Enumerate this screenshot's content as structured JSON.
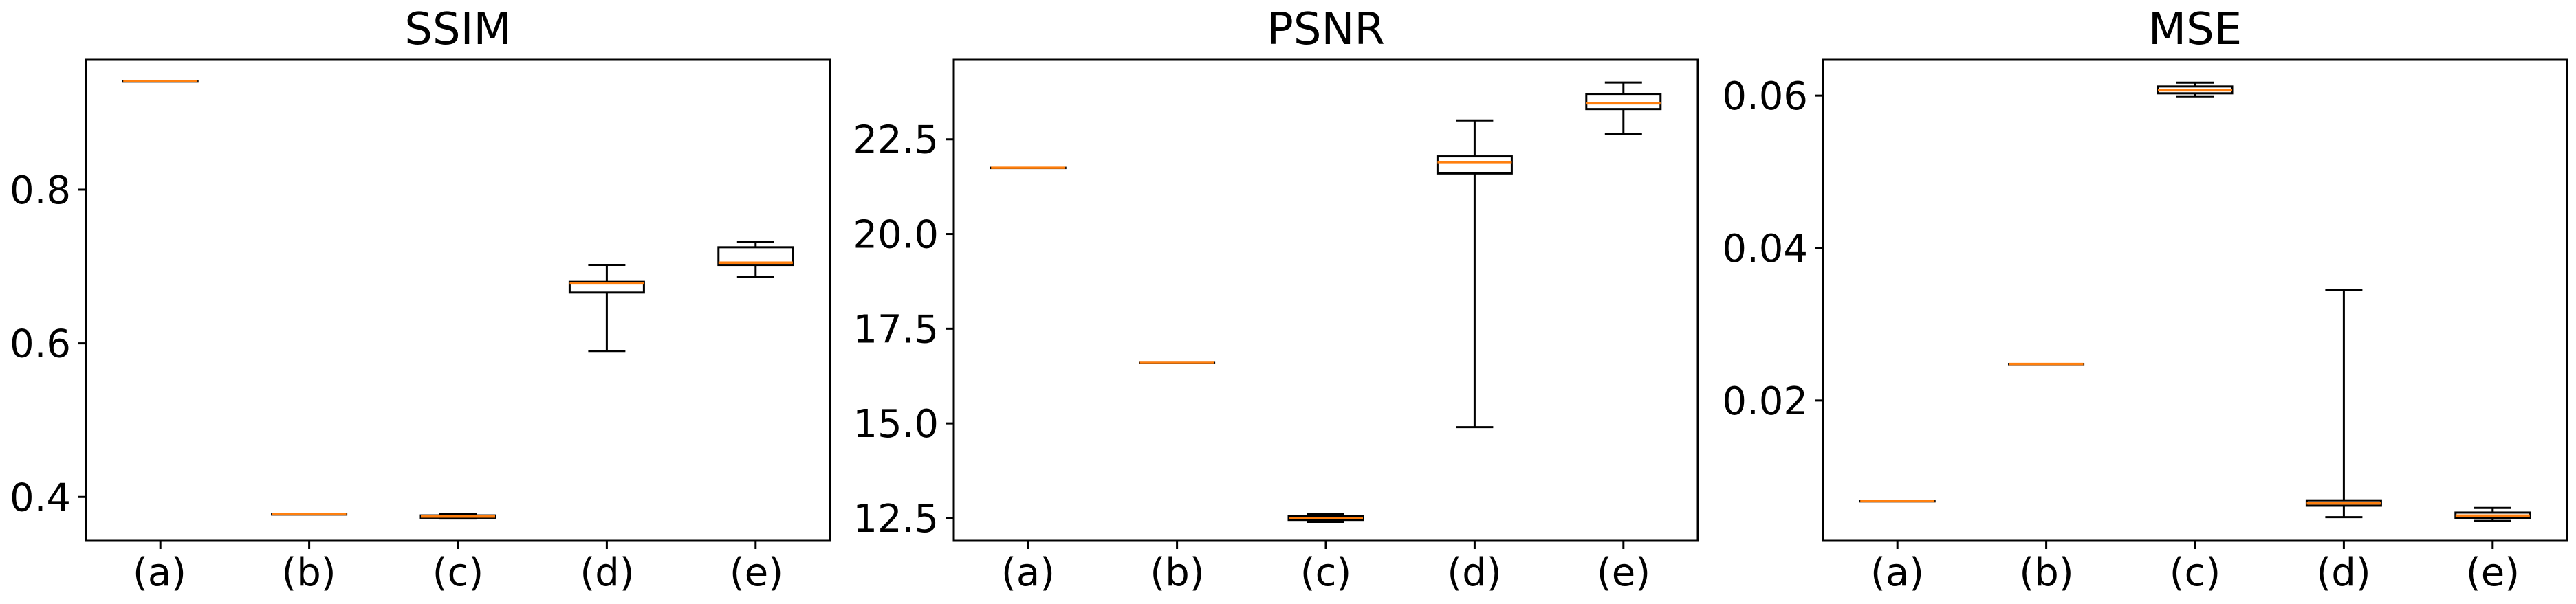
{
  "colors": {
    "box": "#000000",
    "median": "#ff7f0e",
    "background": "#ffffff"
  },
  "chart_data": [
    {
      "type": "box",
      "title": "SSIM",
      "categories": [
        "(a)",
        "(b)",
        "(c)",
        "(d)",
        "(e)"
      ],
      "ylim": [
        0.343,
        0.969
      ],
      "yticks": [
        0.4,
        0.6,
        0.8
      ],
      "ytick_labels": [
        "0.4",
        "0.6",
        "0.8"
      ],
      "boxes": [
        {
          "whislo": 0.941,
          "q1": 0.941,
          "med": 0.941,
          "q3": 0.941,
          "whishi": 0.941
        },
        {
          "whislo": 0.3775,
          "q1": 0.3775,
          "med": 0.3775,
          "q3": 0.3775,
          "whishi": 0.3775
        },
        {
          "whislo": 0.372,
          "q1": 0.373,
          "med": 0.3745,
          "q3": 0.376,
          "whishi": 0.378
        },
        {
          "whislo": 0.59,
          "q1": 0.666,
          "med": 0.678,
          "q3": 0.68,
          "whishi": 0.702
        },
        {
          "whislo": 0.686,
          "q1": 0.702,
          "med": 0.705,
          "q3": 0.725,
          "whishi": 0.732
        }
      ]
    },
    {
      "type": "box",
      "title": "PSNR",
      "categories": [
        "(a)",
        "(b)",
        "(c)",
        "(d)",
        "(e)"
      ],
      "ylim": [
        11.9,
        24.6
      ],
      "yticks": [
        12.5,
        15.0,
        17.5,
        20.0,
        22.5
      ],
      "ytick_labels": [
        "12.5",
        "15.0",
        "17.5",
        "20.0",
        "22.5"
      ],
      "boxes": [
        {
          "whislo": 21.75,
          "q1": 21.75,
          "med": 21.75,
          "q3": 21.75,
          "whishi": 21.75
        },
        {
          "whislo": 16.6,
          "q1": 16.6,
          "med": 16.6,
          "q3": 16.6,
          "whishi": 16.6
        },
        {
          "whislo": 12.4,
          "q1": 12.45,
          "med": 12.5,
          "q3": 12.55,
          "whishi": 12.6
        },
        {
          "whislo": 14.9,
          "q1": 21.6,
          "med": 21.9,
          "q3": 22.05,
          "whishi": 23.0
        },
        {
          "whislo": 22.65,
          "q1": 23.3,
          "med": 23.45,
          "q3": 23.7,
          "whishi": 24.0
        }
      ]
    },
    {
      "type": "box",
      "title": "MSE",
      "categories": [
        "(a)",
        "(b)",
        "(c)",
        "(d)",
        "(e)"
      ],
      "ylim": [
        0.0016,
        0.0647
      ],
      "yticks": [
        0.02,
        0.04,
        0.06
      ],
      "ytick_labels": [
        "0.02",
        "0.04",
        "0.06"
      ],
      "boxes": [
        {
          "whislo": 0.0068,
          "q1": 0.0068,
          "med": 0.0068,
          "q3": 0.0068,
          "whishi": 0.0068
        },
        {
          "whislo": 0.0248,
          "q1": 0.0248,
          "med": 0.0248,
          "q3": 0.0248,
          "whishi": 0.0248
        },
        {
          "whislo": 0.0599,
          "q1": 0.0603,
          "med": 0.0607,
          "q3": 0.0612,
          "whishi": 0.0617
        },
        {
          "whislo": 0.0047,
          "q1": 0.0062,
          "med": 0.0065,
          "q3": 0.0069,
          "whishi": 0.0345
        },
        {
          "whislo": 0.0042,
          "q1": 0.0046,
          "med": 0.0049,
          "q3": 0.0053,
          "whishi": 0.0059
        }
      ]
    }
  ]
}
